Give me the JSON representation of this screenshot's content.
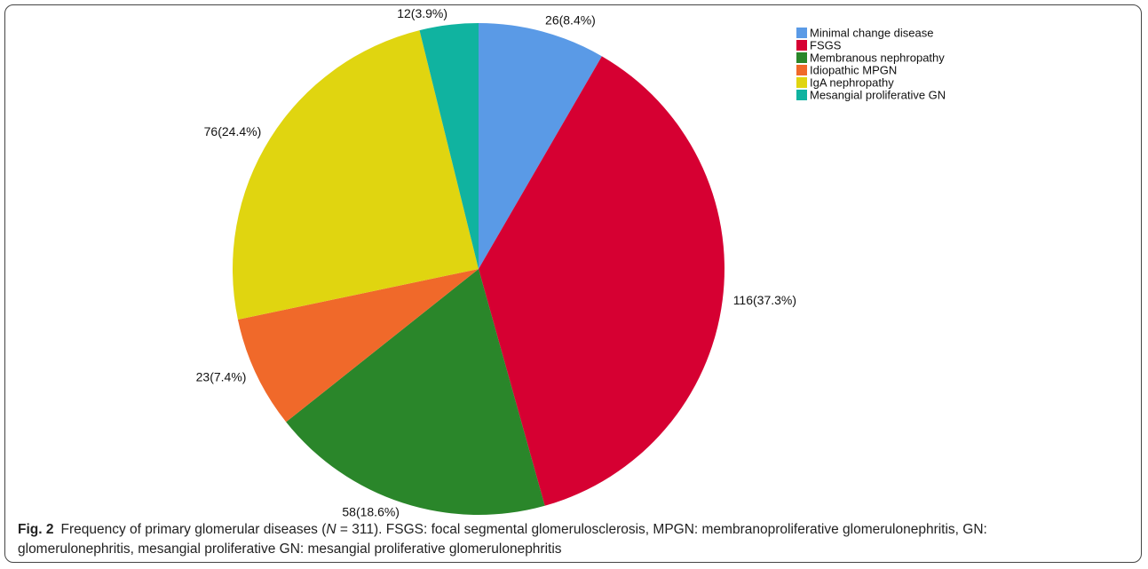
{
  "chart_data": {
    "type": "pie",
    "categories": [
      "Minimal change disease",
      "FSGS",
      "Membranous nephropathy",
      "Idiopathic MPGN",
      "IgA nephropathy",
      "Mesangial proliferative GN"
    ],
    "values": [
      26,
      116,
      58,
      23,
      76,
      12
    ],
    "value_labels": [
      "26(8.4%)",
      "116(37.3%)",
      "58(18.6%)",
      "23(7.4%)",
      "76(24.4%)",
      "12(3.9%)"
    ],
    "colors": [
      "#5a9ae6",
      "#d60032",
      "#2a862a",
      "#f0692a",
      "#e0d510",
      "#10b3a0"
    ],
    "legend": "top-right"
  },
  "caption": {
    "label": "Fig. 2",
    "parts": [
      "Frequency of primary glomerular diseases (",
      "N",
      " = 311). FSGS: focal segmental glomerulosclerosis, MPGN: membranoproliferative glomerulonephritis, GN: glomerulonephritis, mesangial proliferative GN: mesangial proliferative glomerulonephritis"
    ]
  }
}
